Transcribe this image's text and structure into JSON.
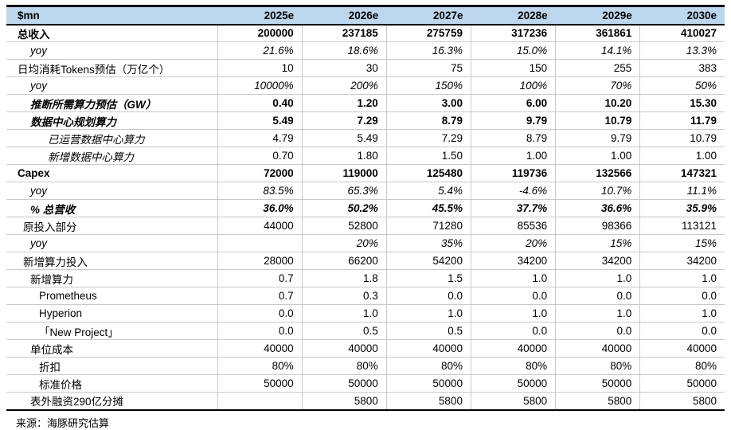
{
  "chart_data": {
    "type": "table",
    "unit_label": "$mn",
    "columns": [
      "2025e",
      "2026e",
      "2027e",
      "2028e",
      "2029e",
      "2030e"
    ],
    "source": "来源：海豚研究估算",
    "colors": {
      "header_bg": "#BDD7EE",
      "rule_dark": "#000000",
      "rule_light": "#C9C9C9"
    },
    "rows": [
      {
        "label": "总收入",
        "indent": 0,
        "label_style": "bold",
        "value_style": "bold",
        "values": [
          "200000",
          "237185",
          "275759",
          "317236",
          "361861",
          "410027"
        ]
      },
      {
        "label": "yoy",
        "indent": 2,
        "label_style": "italic",
        "value_style": "italic",
        "values": [
          "21.6%",
          "18.6%",
          "16.3%",
          "15.0%",
          "14.1%",
          "13.3%"
        ]
      },
      {
        "label": "日均消耗Tokens预估（万亿个）",
        "indent": 0,
        "label_style": "normal",
        "value_style": "normal",
        "values": [
          "10",
          "30",
          "75",
          "150",
          "255",
          "383"
        ]
      },
      {
        "label": "yoy",
        "indent": 2,
        "label_style": "italic",
        "value_style": "italic",
        "values": [
          "10000%",
          "200%",
          "150%",
          "100%",
          "70%",
          "50%"
        ]
      },
      {
        "label": "推断所需算力预估（GW）",
        "indent": 2,
        "label_style": "bold-italic",
        "value_style": "bold",
        "values": [
          "0.40",
          "1.20",
          "3.00",
          "6.00",
          "10.20",
          "15.30"
        ]
      },
      {
        "label": "数据中心规划算力",
        "indent": 2,
        "label_style": "bold-italic",
        "value_style": "bold",
        "values": [
          "5.49",
          "7.29",
          "8.79",
          "9.79",
          "10.79",
          "11.79"
        ]
      },
      {
        "label": "已运营数据中心算力",
        "indent": 4,
        "label_style": "italic",
        "value_style": "normal",
        "values": [
          "4.79",
          "5.49",
          "7.29",
          "8.79",
          "9.79",
          "10.79"
        ]
      },
      {
        "label": "新增数据中心算力",
        "indent": 4,
        "label_style": "italic",
        "value_style": "normal",
        "values": [
          "0.70",
          "1.80",
          "1.50",
          "1.00",
          "1.00",
          "1.00"
        ]
      },
      {
        "label": "Capex",
        "indent": 0,
        "label_style": "bold",
        "value_style": "bold",
        "values": [
          "72000",
          "119000",
          "125480",
          "119736",
          "132566",
          "147321"
        ]
      },
      {
        "label": "yoy",
        "indent": 2,
        "label_style": "italic",
        "value_style": "italic",
        "values": [
          "83.5%",
          "65.3%",
          "5.4%",
          "-4.6%",
          "10.7%",
          "11.1%"
        ]
      },
      {
        "label": "% 总营收",
        "indent": 2,
        "label_style": "bold-italic",
        "value_style": "bold-italic",
        "values": [
          "36.0%",
          "50.2%",
          "45.5%",
          "37.7%",
          "36.6%",
          "35.9%"
        ]
      },
      {
        "label": "原投入部分",
        "indent": 1,
        "label_style": "normal",
        "value_style": "normal",
        "values": [
          "44000",
          "52800",
          "71280",
          "85536",
          "98366",
          "113121"
        ]
      },
      {
        "label": "yoy",
        "indent": 2,
        "label_style": "italic",
        "value_style": "italic",
        "values": [
          "",
          "20%",
          "35%",
          "20%",
          "15%",
          "15%"
        ]
      },
      {
        "label": "新增算力投入",
        "indent": 1,
        "label_style": "normal",
        "value_style": "normal",
        "values": [
          "28000",
          "66200",
          "54200",
          "34200",
          "34200",
          "34200"
        ]
      },
      {
        "label": "新增算力",
        "indent": 2,
        "label_style": "normal",
        "value_style": "normal",
        "values": [
          "0.7",
          "1.8",
          "1.5",
          "1.0",
          "1.0",
          "1.0"
        ]
      },
      {
        "label": "Prometheus",
        "indent": 3,
        "label_style": "normal",
        "value_style": "normal",
        "values": [
          "0.7",
          "0.3",
          "0.0",
          "0.0",
          "0.0",
          "0.0"
        ]
      },
      {
        "label": "Hyperion",
        "indent": 3,
        "label_style": "normal",
        "value_style": "normal",
        "values": [
          "0.0",
          "1.0",
          "1.0",
          "1.0",
          "1.0",
          "1.0"
        ]
      },
      {
        "label": "「New Project」",
        "indent": 3,
        "label_style": "normal",
        "value_style": "normal",
        "values": [
          "0.0",
          "0.5",
          "0.5",
          "0.0",
          "0.0",
          "0.0"
        ]
      },
      {
        "label": "单位成本",
        "indent": 2,
        "label_style": "normal",
        "value_style": "normal",
        "values": [
          "40000",
          "40000",
          "40000",
          "40000",
          "40000",
          "40000"
        ]
      },
      {
        "label": "折扣",
        "indent": 3,
        "label_style": "normal",
        "value_style": "normal",
        "values": [
          "80%",
          "80%",
          "80%",
          "80%",
          "80%",
          "80%"
        ]
      },
      {
        "label": "标准价格",
        "indent": 3,
        "label_style": "normal",
        "value_style": "normal",
        "values": [
          "50000",
          "50000",
          "50000",
          "50000",
          "50000",
          "50000"
        ]
      },
      {
        "label": "表外融资290亿分摊",
        "indent": 2,
        "label_style": "normal",
        "value_style": "normal",
        "values": [
          "",
          "5800",
          "5800",
          "5800",
          "5800",
          "5800"
        ]
      }
    ]
  }
}
